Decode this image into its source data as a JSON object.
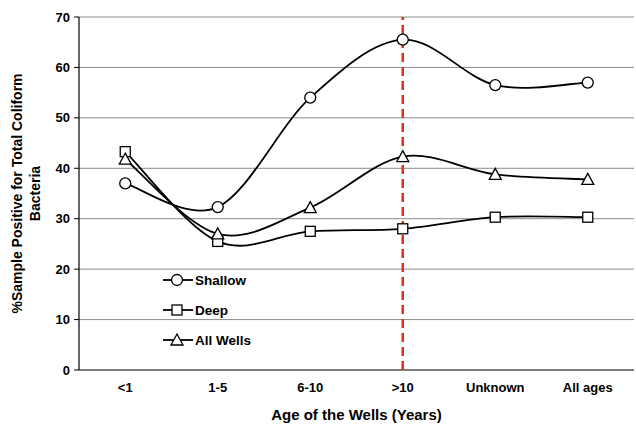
{
  "chart_data": {
    "type": "line",
    "x_label": "Age of the Wells (Years)",
    "y_label": "%Sample Positive for Total Coliform Bacteria",
    "categories": [
      "<1",
      "1-5",
      "6-10",
      ">10",
      "Unknown",
      "All ages"
    ],
    "series": [
      {
        "name": "Shallow",
        "color": "#000000",
        "marker": "circle",
        "values": [
          37,
          32.3,
          54,
          65.5,
          56.5,
          57
        ]
      },
      {
        "name": "Deep",
        "color": "#000000",
        "marker": "square",
        "values": [
          43.3,
          25.5,
          27.5,
          28,
          30.3,
          30.3
        ]
      },
      {
        "name": "All Wells",
        "color": "#000000",
        "marker": "triangle",
        "values": [
          41.8,
          27,
          32.2,
          42.3,
          38.8,
          37.8
        ]
      }
    ],
    "ylim": [
      0,
      70
    ],
    "yticks": [
      0,
      10,
      20,
      30,
      40,
      50,
      60,
      70
    ],
    "grid": true,
    "legend": "lower left",
    "reference_line": {
      "x": ">10",
      "color": "#e0301e",
      "line_style": "dashed"
    }
  }
}
